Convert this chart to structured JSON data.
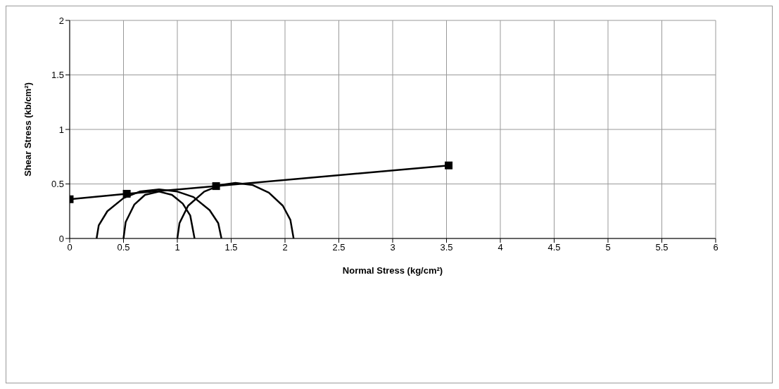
{
  "chart_data": {
    "type": "line",
    "xlabel": "Normal Stress (kg/cm²)",
    "ylabel": "Shear Stress (kb/cm²)",
    "xlim": [
      0,
      6
    ],
    "xticks": [
      0,
      0.5,
      1,
      1.5,
      2,
      2.5,
      3,
      3.5,
      4,
      4.5,
      5,
      5.5,
      6
    ],
    "ylim": [
      0,
      2
    ],
    "yticks": [
      0,
      0.5,
      1,
      1.5,
      2
    ],
    "grid": true,
    "legend": false,
    "line_style": "solid",
    "series": [
      {
        "color": "#000000",
        "marker": "square",
        "x": [
          0,
          0.53,
          1.36,
          3.52
        ],
        "values": [
          0.36,
          0.41,
          0.48,
          0.67
        ]
      },
      {
        "color": "#000000",
        "marker": "none",
        "x": [
          0.25,
          0.27,
          0.35,
          0.5,
          0.65,
          0.83,
          1.0,
          1.15,
          1.3,
          1.38,
          1.41
        ],
        "values": [
          0,
          0.12,
          0.25,
          0.37,
          0.43,
          0.45,
          0.43,
          0.38,
          0.26,
          0.14,
          0
        ]
      },
      {
        "color": "#000000",
        "marker": "none",
        "x": [
          0.5,
          0.52,
          0.6,
          0.7,
          0.83,
          0.95,
          1.05,
          1.12,
          1.16
        ],
        "values": [
          0,
          0.15,
          0.31,
          0.4,
          0.43,
          0.4,
          0.32,
          0.21,
          0
        ]
      },
      {
        "color": "#000000",
        "marker": "none",
        "x": [
          1.0,
          1.02,
          1.1,
          1.25,
          1.4,
          1.54,
          1.7,
          1.85,
          1.98,
          2.05,
          2.08
        ],
        "values": [
          0,
          0.14,
          0.3,
          0.43,
          0.49,
          0.51,
          0.49,
          0.42,
          0.3,
          0.17,
          0
        ]
      }
    ]
  }
}
